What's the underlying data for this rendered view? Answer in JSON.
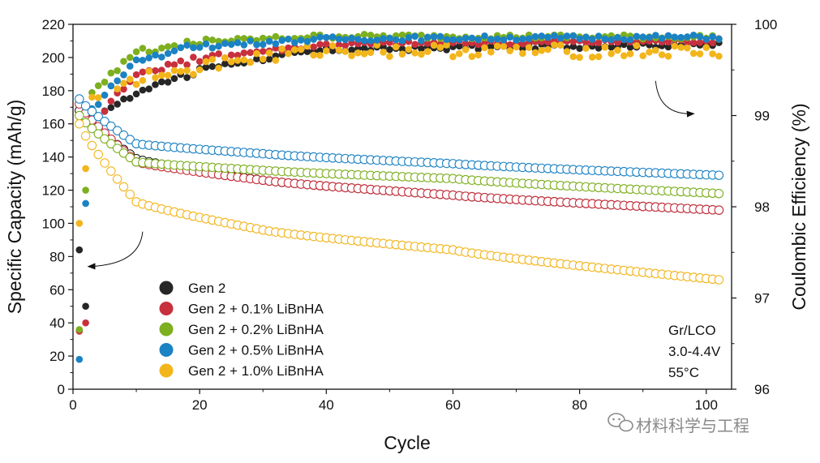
{
  "chart_data": {
    "type": "scatter",
    "x": {
      "label": "Cycle",
      "range": [
        0,
        104
      ],
      "ticks": [
        0,
        20,
        40,
        60,
        80,
        100
      ]
    },
    "y_left": {
      "label": "Specific Capacity (mAh/g)",
      "range": [
        0,
        220
      ],
      "ticks": [
        0,
        20,
        40,
        60,
        80,
        100,
        120,
        140,
        160,
        180,
        200,
        220
      ]
    },
    "y_right": {
      "label": "Coulombic Efficiency (%)",
      "range": [
        96,
        100
      ],
      "ticks": [
        96,
        97,
        98,
        99,
        100
      ]
    },
    "series": [
      {
        "name": "Gen 2",
        "color": "#262626",
        "capacity": {
          "start": 168,
          "c10": 139,
          "c30": 126,
          "c60": 117,
          "end": 108
        },
        "ce_first": [
          84,
          50
        ],
        "ce": {
          "start": 98.9,
          "c10": 99.25,
          "c20": 99.5,
          "c40": 99.72,
          "end": 99.78
        }
      },
      {
        "name": "Gen 2 + 0.1% LiBnHA",
        "color": "#c8303e",
        "capacity": {
          "start": 172,
          "c10": 137,
          "c30": 126,
          "c60": 117,
          "end": 108
        },
        "ce_first": [
          35,
          40
        ],
        "ce": {
          "start": 98.8,
          "c10": 99.45,
          "c20": 99.62,
          "c40": 99.78,
          "end": 99.82
        }
      },
      {
        "name": "Gen 2 + 0.2% LiBnHA",
        "color": "#7daf1f",
        "capacity": {
          "start": 165,
          "c10": 137,
          "c30": 132,
          "c60": 127,
          "end": 118
        },
        "ce_first": [
          36,
          120
        ],
        "ce": {
          "start": 99.15,
          "c10": 99.7,
          "c20": 99.8,
          "c40": 99.87,
          "end": 99.86
        }
      },
      {
        "name": "Gen 2 + 0.5% LiBnHA",
        "color": "#1b82c3",
        "capacity": {
          "start": 175,
          "c10": 148,
          "c30": 142,
          "c60": 136,
          "end": 129
        },
        "ce_first": [
          18,
          112
        ],
        "ce": {
          "start": 98.95,
          "c10": 99.6,
          "c20": 99.76,
          "c40": 99.84,
          "end": 99.86
        }
      },
      {
        "name": "Gen 2 + 1.0% LiBnHA",
        "color": "#f2b51b",
        "capacity": {
          "start": 160,
          "c10": 113,
          "c30": 96,
          "c60": 84,
          "end": 66
        },
        "ce_first": [
          100,
          133
        ],
        "ce": {
          "start": 99.1,
          "c10": 99.4,
          "c20": 99.55,
          "c40": 99.72,
          "end": 99.7
        }
      }
    ],
    "arrows": [
      {
        "points_to": "left axis",
        "from": [
          11,
          95
        ],
        "to": [
          2.5,
          74
        ]
      },
      {
        "points_to": "right axis",
        "from": [
          92,
          99.38
        ],
        "to": [
          100,
          99.02
        ]
      }
    ],
    "conditions": [
      "Gr/LCO",
      "3.0-4.4V",
      "55°C"
    ],
    "legend_position": "bottom-left"
  },
  "watermark": {
    "text": "材料科学与工程",
    "icon": "wechat-icon"
  }
}
